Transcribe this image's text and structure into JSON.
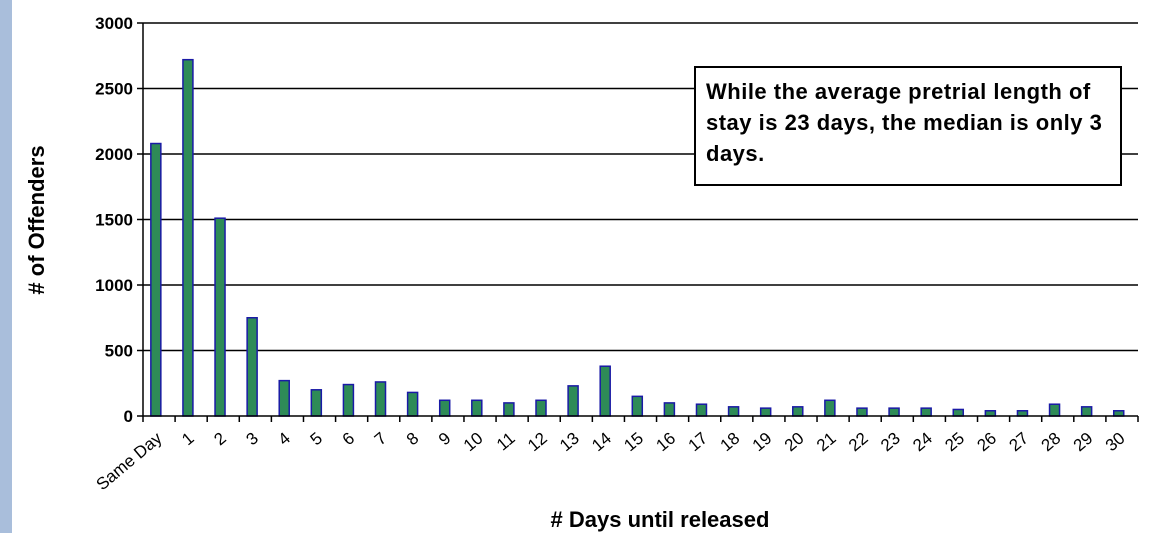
{
  "chart_data": {
    "type": "bar",
    "title": "",
    "xlabel": "# Days until released",
    "ylabel": "# of Offenders",
    "ylim": [
      0,
      3000
    ],
    "yticks": [
      0,
      500,
      1000,
      1500,
      2000,
      2500,
      3000
    ],
    "grid": true,
    "categories": [
      "Same Day",
      "1",
      "2",
      "3",
      "4",
      "5",
      "6",
      "7",
      "8",
      "9",
      "10",
      "11",
      "12",
      "13",
      "14",
      "15",
      "16",
      "17",
      "18",
      "19",
      "20",
      "21",
      "22",
      "23",
      "24",
      "25",
      "26",
      "27",
      "28",
      "29",
      "30"
    ],
    "values": [
      2080,
      2720,
      1510,
      750,
      270,
      200,
      240,
      260,
      180,
      120,
      120,
      100,
      120,
      230,
      380,
      150,
      100,
      90,
      70,
      60,
      70,
      120,
      60,
      60,
      60,
      50,
      40,
      40,
      90,
      70,
      40
    ],
    "annotation": "While the average pretrial length of stay is 23 days, the median is only 3 days.",
    "colors": {
      "bar_fill": "#2e8b57",
      "bar_stroke": "#1a1aa6",
      "gridline": "#000000",
      "left_strip": "#a9bedb"
    }
  }
}
